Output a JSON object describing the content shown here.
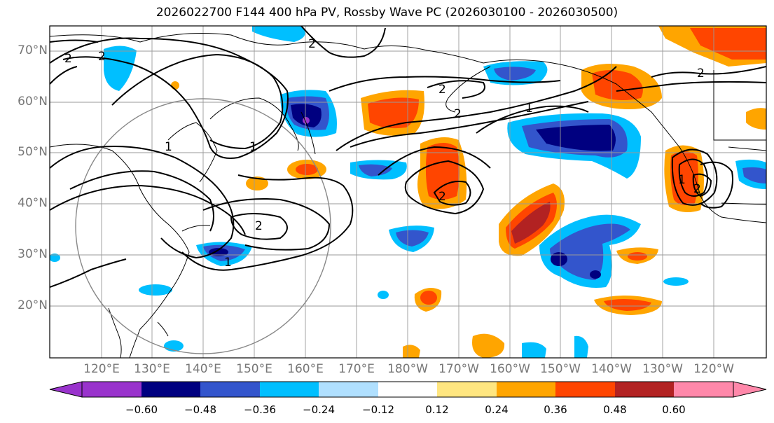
{
  "title": "2026022700 F144 400 hPa PV, Rossby Wave PC (2026030100 - 2026030500)",
  "lat_labels": [
    "70°N",
    "60°N",
    "50°N",
    "40°N",
    "30°N",
    "20°N"
  ],
  "lon_labels": [
    "120°E",
    "130°E",
    "140°E",
    "150°E",
    "160°E",
    "170°E",
    "180°W",
    "170°W",
    "160°W",
    "150°W",
    "140°W",
    "130°W",
    "120°W"
  ],
  "colorbar": {
    "ticks": [
      "−0.60",
      "−0.48",
      "−0.36",
      "−0.24",
      "−0.12",
      "0.12",
      "0.24",
      "0.36",
      "0.48",
      "0.60"
    ],
    "colors": [
      "#9933cc",
      "#000080",
      "#3355cc",
      "#00bfff",
      "#b0e0ff",
      "#ffffff",
      "#ffe680",
      "#ffa500",
      "#ff4500",
      "#b22222",
      "#ff88aa"
    ]
  },
  "contour_labels": [
    "2",
    "2",
    "2",
    "2",
    "2",
    "2",
    "1",
    "1",
    "1",
    "1",
    "2",
    "2",
    "2",
    "1"
  ]
}
